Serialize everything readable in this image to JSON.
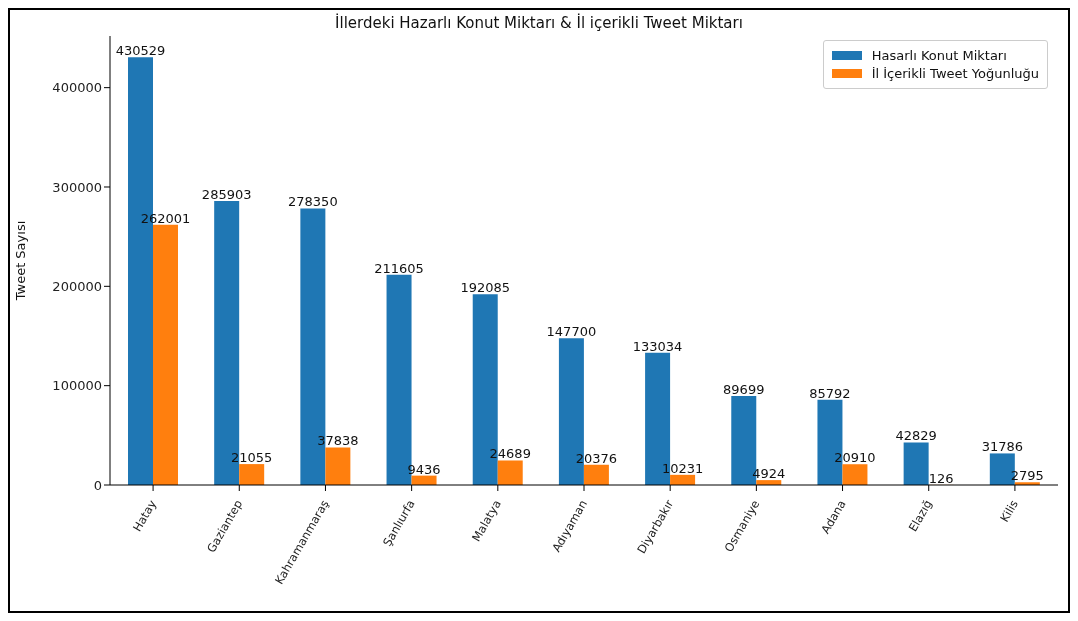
{
  "chart_data": {
    "type": "bar",
    "title": "İllerdeki Hazarlı Konut Miktarı & İl içerikli Tweet Miktarı",
    "ylabel": "Tweet Sayısı",
    "categories": [
      "Hatay",
      "Gaziantep",
      "Kahramanmaraş",
      "Şanlıurfa",
      "Malatya",
      "Adıyaman",
      "Diyarbakır",
      "Osmaniye",
      "Adana",
      "Elazığ",
      "Kilis"
    ],
    "series": [
      {
        "name": "Hasarlı Konut Miktarı",
        "color": "#1f77b4",
        "values": [
          430529,
          285903,
          278350,
          211605,
          192085,
          147700,
          133034,
          89699,
          85792,
          42829,
          31786
        ]
      },
      {
        "name": "İl İçerikli Tweet Yoğunluğu",
        "color": "#ff7f0e",
        "values": [
          262001,
          21055,
          37838,
          9436,
          24689,
          20376,
          10231,
          4924,
          20910,
          126,
          2795
        ]
      }
    ],
    "ylim": [
      0,
      452000
    ],
    "yticks": [
      0,
      100000,
      200000,
      300000,
      400000
    ],
    "legend": "top right",
    "data_labels": true
  }
}
